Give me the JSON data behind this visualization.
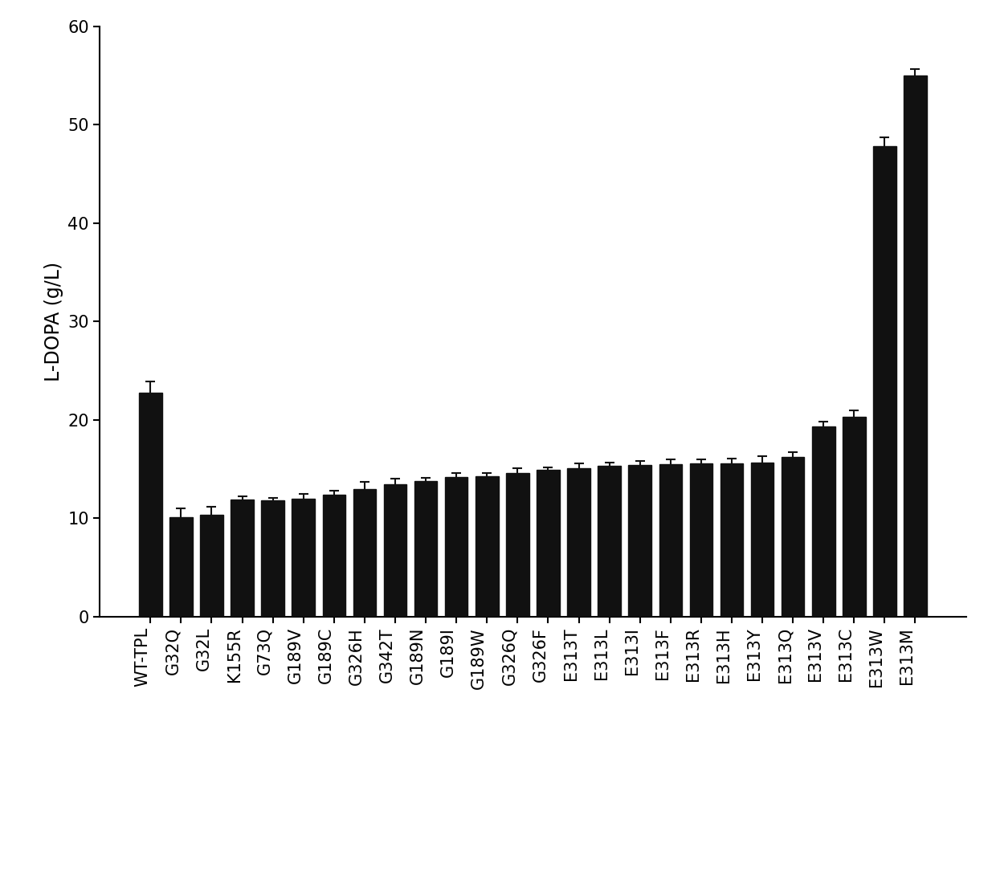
{
  "categories": [
    "WT-TPL",
    "G32Q",
    "G32L",
    "K155R",
    "G73Q",
    "G189V",
    "G189C",
    "G326H",
    "G342T",
    "G189N",
    "G189I",
    "G189W",
    "G326Q",
    "G326F",
    "E313T",
    "E313L",
    "E313I",
    "E313F",
    "E313R",
    "E313H",
    "E313Y",
    "E313Q",
    "E313V",
    "E313C",
    "E313W",
    "E313M"
  ],
  "values": [
    22.8,
    10.1,
    10.4,
    11.9,
    11.8,
    12.0,
    12.4,
    13.0,
    13.5,
    13.8,
    14.2,
    14.3,
    14.6,
    14.9,
    15.1,
    15.3,
    15.4,
    15.5,
    15.6,
    15.6,
    15.7,
    16.2,
    19.3,
    20.3,
    47.8,
    55.0
  ],
  "errors": [
    1.1,
    0.9,
    0.8,
    0.3,
    0.3,
    0.5,
    0.4,
    0.7,
    0.5,
    0.3,
    0.4,
    0.3,
    0.5,
    0.3,
    0.5,
    0.4,
    0.4,
    0.5,
    0.4,
    0.5,
    0.6,
    0.5,
    0.5,
    0.7,
    0.9,
    0.7
  ],
  "bar_color": "#111111",
  "error_color": "#111111",
  "ylabel": "L-DOPA (g/L)",
  "ylim": [
    0,
    60
  ],
  "yticks": [
    0,
    10,
    20,
    30,
    40,
    50,
    60
  ],
  "background_color": "#ffffff",
  "bar_width": 0.75,
  "tick_fontsize": 15,
  "label_fontsize": 17,
  "capsize": 4,
  "label_rotation": 90,
  "label_ha": "right"
}
